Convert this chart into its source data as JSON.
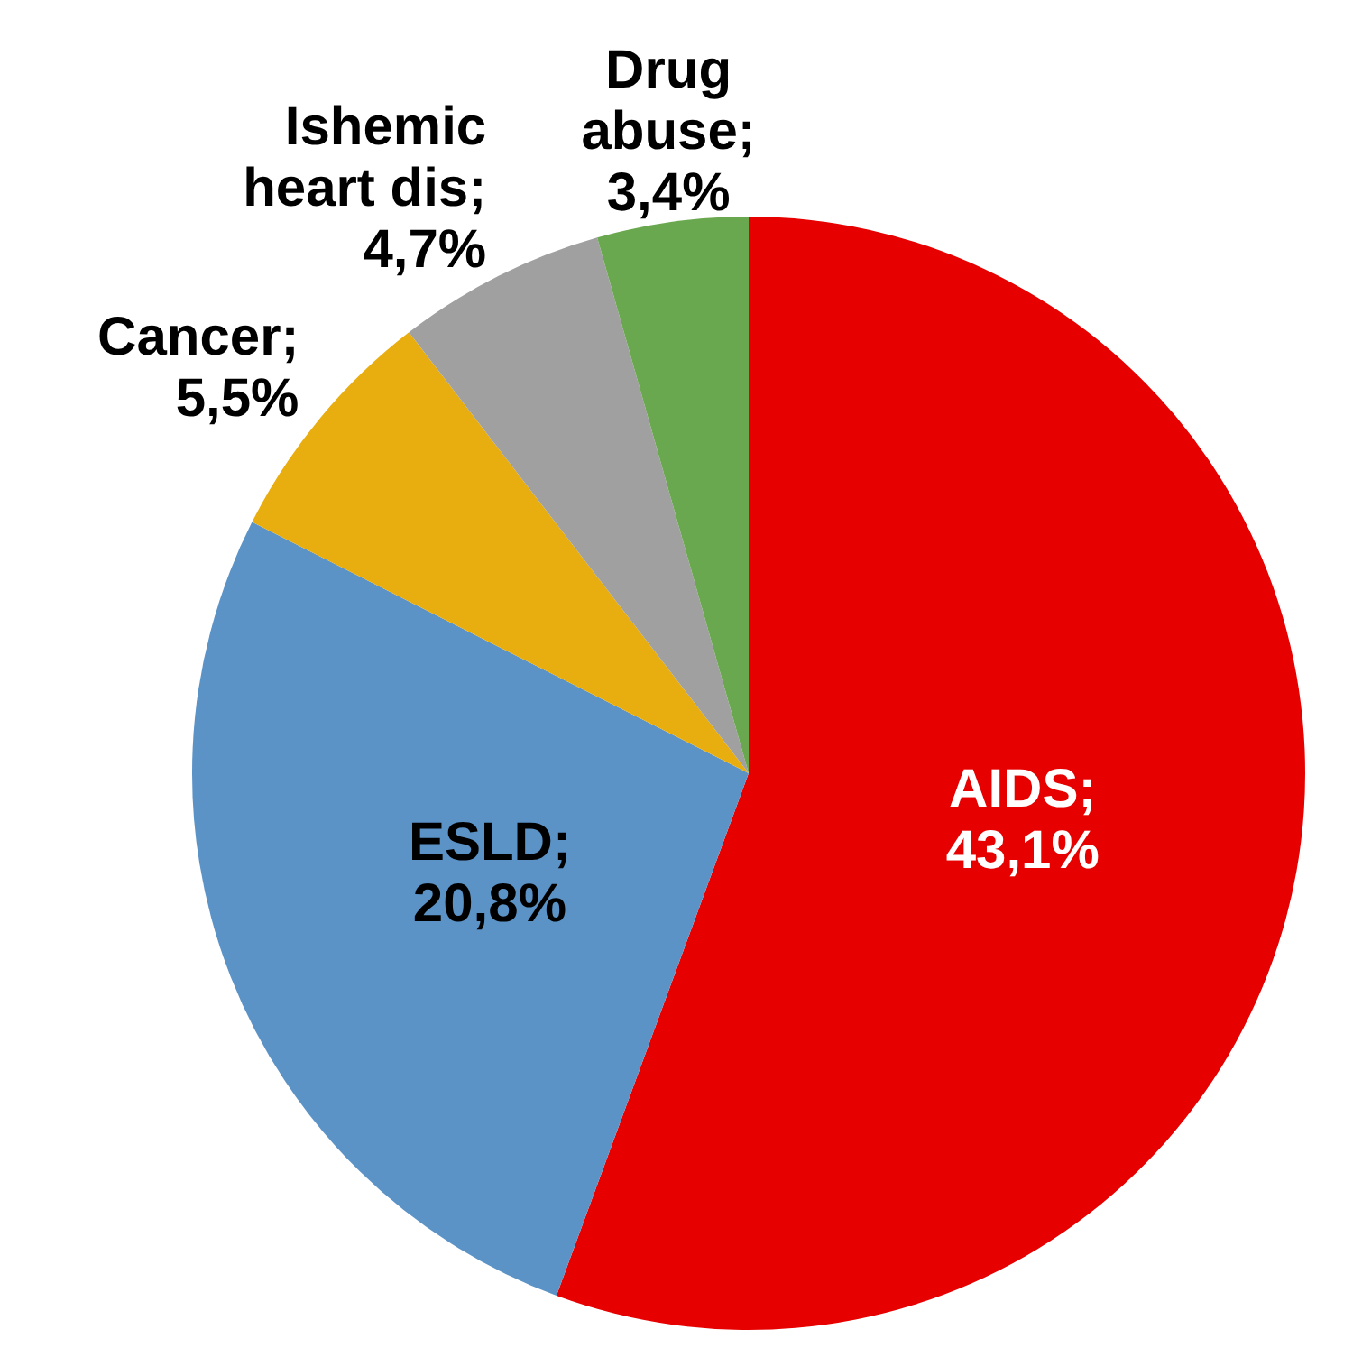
{
  "chart_data": {
    "type": "pie",
    "categories": [
      "AIDS",
      "ESLD",
      "Cancer",
      "Ishemic heart dis",
      "Drug abuse"
    ],
    "values": [
      43.1,
      20.8,
      5.5,
      4.7,
      3.4
    ],
    "value_labels": [
      "; 43,1%",
      "; 20,8%",
      "; 5,5%",
      "; 4,7%",
      "; 3,4%"
    ],
    "colors": [
      "#e60000",
      "#5b93c7",
      "#e8ad0e",
      "#a0a0a0",
      "#6aa84f"
    ],
    "legend": false
  }
}
